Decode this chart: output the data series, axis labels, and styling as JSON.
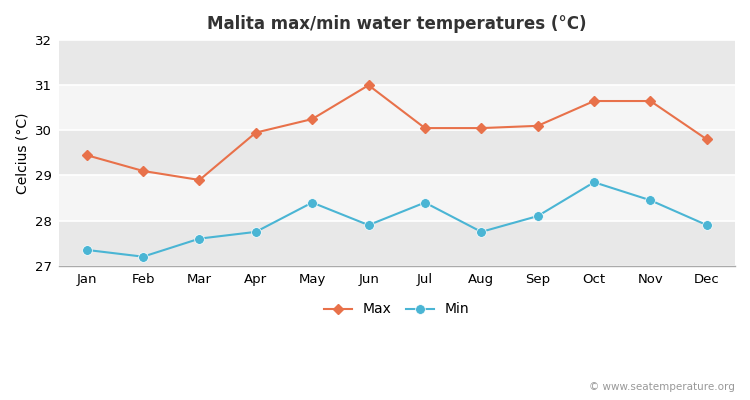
{
  "title": "Malita max/min water temperatures (°C)",
  "ylabel": "Celcius (°C)",
  "months": [
    "Jan",
    "Feb",
    "Mar",
    "Apr",
    "May",
    "Jun",
    "Jul",
    "Aug",
    "Sep",
    "Oct",
    "Nov",
    "Dec"
  ],
  "max_temps": [
    29.45,
    29.1,
    28.9,
    29.95,
    30.25,
    31.0,
    30.05,
    30.05,
    30.1,
    30.65,
    30.65,
    29.8
  ],
  "min_temps": [
    27.35,
    27.2,
    27.6,
    27.75,
    28.4,
    27.9,
    28.4,
    27.75,
    28.1,
    28.85,
    28.45,
    27.9
  ],
  "max_color": "#e8714a",
  "min_color": "#4ab5d4",
  "fig_bg_color": "#ffffff",
  "plot_bg_color": "#ffffff",
  "band_colors": [
    "#e8e8e8",
    "#f5f5f5"
  ],
  "ylim": [
    27,
    32
  ],
  "yticks": [
    27,
    28,
    29,
    30,
    31,
    32
  ],
  "watermark": "© www.seatemperature.org",
  "legend_max": "Max",
  "legend_min": "Min"
}
